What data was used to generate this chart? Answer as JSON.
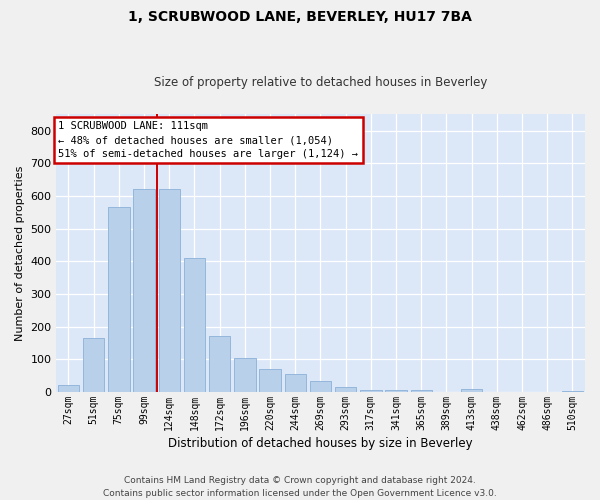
{
  "title": "1, SCRUBWOOD LANE, BEVERLEY, HU17 7BA",
  "subtitle": "Size of property relative to detached houses in Beverley",
  "xlabel": "Distribution of detached houses by size in Beverley",
  "ylabel": "Number of detached properties",
  "footer_line1": "Contains HM Land Registry data © Crown copyright and database right 2024.",
  "footer_line2": "Contains public sector information licensed under the Open Government Licence v3.0.",
  "categories": [
    "27sqm",
    "51sqm",
    "75sqm",
    "99sqm",
    "124sqm",
    "148sqm",
    "172sqm",
    "196sqm",
    "220sqm",
    "244sqm",
    "269sqm",
    "293sqm",
    "317sqm",
    "341sqm",
    "365sqm",
    "389sqm",
    "413sqm",
    "438sqm",
    "462sqm",
    "486sqm",
    "510sqm"
  ],
  "bar_heights": [
    20,
    165,
    565,
    620,
    620,
    410,
    170,
    105,
    70,
    55,
    35,
    15,
    5,
    5,
    5,
    0,
    10,
    0,
    0,
    0,
    2
  ],
  "bar_color": "#b8d0ea",
  "bar_edge_color": "#8ab0d8",
  "plot_bg_color": "#dce8f8",
  "fig_bg_color": "#f0f0f0",
  "grid_color": "#ffffff",
  "vline_color": "#cc0000",
  "vline_x_bin": 3,
  "annotation_text": "1 SCRUBWOOD LANE: 111sqm\n← 48% of detached houses are smaller (1,054)\n51% of semi-detached houses are larger (1,124) →",
  "annotation_border_color": "#cc0000",
  "annotation_bg_color": "#ffffff",
  "ylim": [
    0,
    850
  ],
  "yticks": [
    0,
    100,
    200,
    300,
    400,
    500,
    600,
    700,
    800
  ],
  "title_fontsize": 10,
  "subtitle_fontsize": 8.5,
  "xlabel_fontsize": 8.5,
  "ylabel_fontsize": 8,
  "tick_fontsize": 8,
  "xtick_fontsize": 7,
  "footer_fontsize": 6.5,
  "annotation_fontsize": 7.5
}
